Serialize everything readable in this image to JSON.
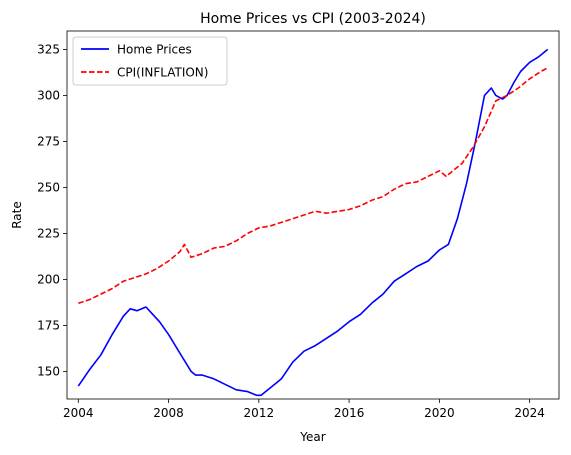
{
  "chart_data": {
    "type": "line",
    "title": "Home Prices vs CPI (2003-2024)",
    "xlabel": "Year",
    "ylabel": "Rate",
    "xlim": [
      2003.5,
      2025.3
    ],
    "ylim": [
      135,
      335
    ],
    "xticks": [
      2004,
      2008,
      2012,
      2016,
      2020,
      2024
    ],
    "yticks": [
      150,
      175,
      200,
      225,
      250,
      275,
      300,
      325
    ],
    "grid": false,
    "legend_position": "top-left",
    "series": [
      {
        "name": "Home Prices",
        "color": "#0000ff",
        "style": "solid",
        "x": [
          2004.0,
          2004.5,
          2005.0,
          2005.5,
          2006.0,
          2006.3,
          2006.6,
          2007.0,
          2007.3,
          2007.6,
          2008.0,
          2008.5,
          2009.0,
          2009.2,
          2009.5,
          2010.0,
          2010.5,
          2011.0,
          2011.5,
          2011.9,
          2012.1,
          2012.5,
          2013.0,
          2013.5,
          2014.0,
          2014.5,
          2015.0,
          2015.5,
          2016.0,
          2016.5,
          2017.0,
          2017.5,
          2018.0,
          2018.5,
          2019.0,
          2019.5,
          2020.0,
          2020.4,
          2020.8,
          2021.2,
          2021.6,
          2022.0,
          2022.3,
          2022.5,
          2022.8,
          2023.0,
          2023.3,
          2023.6,
          2024.0,
          2024.4,
          2024.8
        ],
        "y": [
          142,
          151,
          159,
          170,
          180,
          184,
          183,
          185,
          181,
          177,
          170,
          160,
          150,
          148,
          148,
          146,
          143,
          140,
          139,
          137,
          137,
          141,
          146,
          155,
          161,
          164,
          168,
          172,
          177,
          181,
          187,
          192,
          199,
          203,
          207,
          210,
          216,
          219,
          233,
          252,
          275,
          300,
          304,
          300,
          298,
          300,
          307,
          313,
          318,
          321,
          325
        ]
      },
      {
        "name": "CPI(INFLATION)",
        "color": "#ff0000",
        "style": "dashed",
        "x": [
          2004.0,
          2004.5,
          2005.0,
          2005.5,
          2006.0,
          2006.5,
          2007.0,
          2007.5,
          2008.0,
          2008.5,
          2008.7,
          2009.0,
          2009.5,
          2010.0,
          2010.5,
          2011.0,
          2011.5,
          2012.0,
          2012.5,
          2013.0,
          2013.5,
          2014.0,
          2014.5,
          2015.0,
          2015.5,
          2016.0,
          2016.5,
          2017.0,
          2017.5,
          2018.0,
          2018.5,
          2019.0,
          2019.5,
          2020.0,
          2020.3,
          2020.6,
          2021.0,
          2021.5,
          2022.0,
          2022.5,
          2023.0,
          2023.5,
          2024.0,
          2024.5,
          2024.8
        ],
        "y": [
          187,
          189,
          192,
          195,
          199,
          201,
          203,
          206,
          210,
          215,
          219,
          212,
          214,
          217,
          218,
          221,
          225,
          228,
          229,
          231,
          233,
          235,
          237,
          236,
          237,
          238,
          240,
          243,
          245,
          249,
          252,
          253,
          256,
          259,
          256,
          259,
          263,
          272,
          283,
          297,
          300,
          304,
          309,
          313,
          315
        ]
      }
    ]
  }
}
